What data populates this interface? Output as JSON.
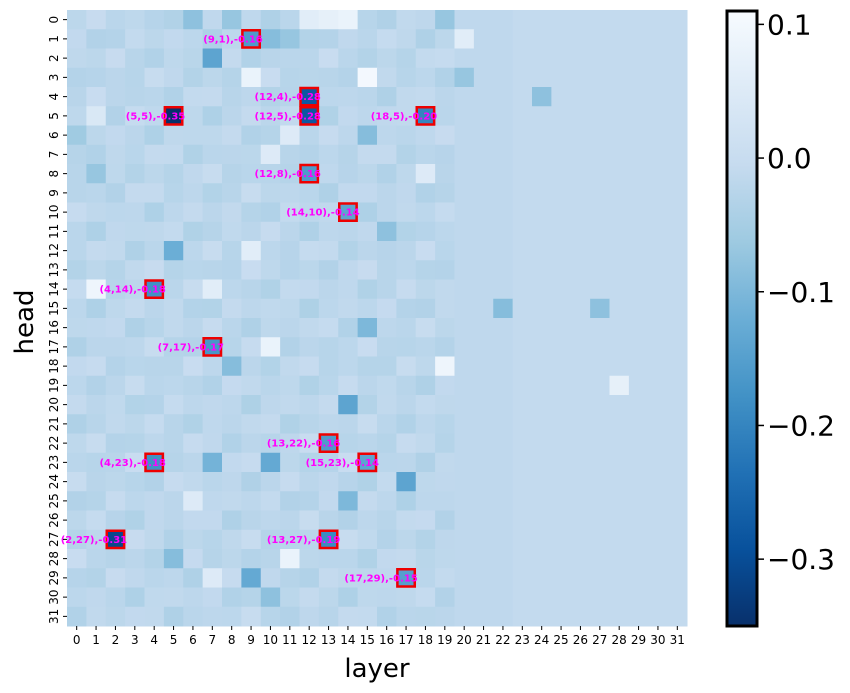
{
  "chart_data": {
    "type": "heatmap",
    "title": "",
    "xlabel": "layer",
    "ylabel": "head",
    "x_ticks": [
      "0",
      "1",
      "2",
      "3",
      "4",
      "5",
      "6",
      "7",
      "8",
      "9",
      "10",
      "11",
      "12",
      "13",
      "14",
      "15",
      "16",
      "17",
      "18",
      "19",
      "20",
      "21",
      "22",
      "23",
      "24",
      "25",
      "26",
      "27",
      "28",
      "29",
      "30",
      "31"
    ],
    "y_ticks": [
      "0",
      "1",
      "2",
      "3",
      "4",
      "5",
      "6",
      "7",
      "8",
      "9",
      "10",
      "11",
      "12",
      "13",
      "14",
      "15",
      "16",
      "17",
      "18",
      "19",
      "20",
      "21",
      "22",
      "23",
      "24",
      "25",
      "26",
      "27",
      "28",
      "29",
      "30",
      "31"
    ],
    "colorbar": {
      "colormap": "Blues_r",
      "range": [
        -0.35,
        0.11
      ],
      "ticks": [
        0.1,
        0.0,
        -0.1,
        -0.2,
        -0.3
      ],
      "tick_labels": [
        "0.1",
        "0.0",
        "−0.1",
        "−0.2",
        "−0.3"
      ]
    },
    "default_value": -0.02,
    "layer_values": {
      "cols_ge_20": -0.015,
      "cols_ge_23": -0.01
    },
    "notable_cells": [
      {
        "layer": 9,
        "head": 1,
        "value": -0.16,
        "label": "(9,1),-0.16"
      },
      {
        "layer": 12,
        "head": 4,
        "value": -0.28,
        "label": "(12,4),-0.28"
      },
      {
        "layer": 5,
        "head": 5,
        "value": -0.35,
        "label": "(5,5),-0.35"
      },
      {
        "layer": 12,
        "head": 5,
        "value": -0.28,
        "label": "(12,5),-0.28"
      },
      {
        "layer": 18,
        "head": 5,
        "value": -0.2,
        "label": "(18,5),-0.20"
      },
      {
        "layer": 12,
        "head": 8,
        "value": -0.16,
        "label": "(12,8),-0.16"
      },
      {
        "layer": 14,
        "head": 10,
        "value": -0.14,
        "label": "(14,10),-0.14"
      },
      {
        "layer": 4,
        "head": 14,
        "value": -0.18,
        "label": "(4,14),-0.18"
      },
      {
        "layer": 7,
        "head": 17,
        "value": -0.17,
        "label": "(7,17),-0.17"
      },
      {
        "layer": 13,
        "head": 22,
        "value": -0.16,
        "label": "(13,22),-0.16"
      },
      {
        "layer": 4,
        "head": 23,
        "value": -0.18,
        "label": "(4,23),-0.18"
      },
      {
        "layer": 15,
        "head": 23,
        "value": -0.14,
        "label": "(15,23),-0.14"
      },
      {
        "layer": 2,
        "head": 27,
        "value": -0.31,
        "label": "(2,27),-0.31"
      },
      {
        "layer": 13,
        "head": 27,
        "value": -0.19,
        "label": "(13,27),-0.19"
      },
      {
        "layer": 17,
        "head": 29,
        "value": -0.15,
        "label": "(17,29),-0.15"
      }
    ],
    "other_cells": [
      {
        "layer": 6,
        "head": 0,
        "value": -0.08
      },
      {
        "layer": 8,
        "head": 0,
        "value": -0.07
      },
      {
        "layer": 12,
        "head": 0,
        "value": 0.06
      },
      {
        "layer": 13,
        "head": 0,
        "value": 0.07
      },
      {
        "layer": 14,
        "head": 0,
        "value": 0.08
      },
      {
        "layer": 19,
        "head": 0,
        "value": -0.07
      },
      {
        "layer": 10,
        "head": 1,
        "value": -0.09
      },
      {
        "layer": 11,
        "head": 1,
        "value": -0.07
      },
      {
        "layer": 20,
        "head": 1,
        "value": 0.06
      },
      {
        "layer": 7,
        "head": 2,
        "value": -0.14
      },
      {
        "layer": 9,
        "head": 3,
        "value": 0.08
      },
      {
        "layer": 15,
        "head": 3,
        "value": 0.1
      },
      {
        "layer": 20,
        "head": 3,
        "value": -0.07
      },
      {
        "layer": 24,
        "head": 4,
        "value": -0.08
      },
      {
        "layer": 1,
        "head": 5,
        "value": 0.04
      },
      {
        "layer": 0,
        "head": 6,
        "value": -0.06
      },
      {
        "layer": 11,
        "head": 6,
        "value": 0.05
      },
      {
        "layer": 15,
        "head": 6,
        "value": -0.09
      },
      {
        "layer": 10,
        "head": 7,
        "value": 0.05
      },
      {
        "layer": 1,
        "head": 8,
        "value": -0.07
      },
      {
        "layer": 18,
        "head": 8,
        "value": 0.05
      },
      {
        "layer": 16,
        "head": 11,
        "value": -0.08
      },
      {
        "layer": 5,
        "head": 12,
        "value": -0.12
      },
      {
        "layer": 9,
        "head": 12,
        "value": 0.06
      },
      {
        "layer": 1,
        "head": 14,
        "value": 0.09
      },
      {
        "layer": 7,
        "head": 14,
        "value": 0.06
      },
      {
        "layer": 22,
        "head": 15,
        "value": -0.09
      },
      {
        "layer": 27,
        "head": 15,
        "value": -0.08
      },
      {
        "layer": 15,
        "head": 16,
        "value": -0.1
      },
      {
        "layer": 10,
        "head": 17,
        "value": 0.08
      },
      {
        "layer": 8,
        "head": 18,
        "value": -0.09
      },
      {
        "layer": 19,
        "head": 18,
        "value": 0.09
      },
      {
        "layer": 28,
        "head": 19,
        "value": 0.07
      },
      {
        "layer": 14,
        "head": 20,
        "value": -0.14
      },
      {
        "layer": 10,
        "head": 23,
        "value": -0.13
      },
      {
        "layer": 7,
        "head": 23,
        "value": -0.11
      },
      {
        "layer": 17,
        "head": 24,
        "value": -0.14
      },
      {
        "layer": 14,
        "head": 25,
        "value": -0.1
      },
      {
        "layer": 6,
        "head": 25,
        "value": 0.05
      },
      {
        "layer": 11,
        "head": 28,
        "value": 0.08
      },
      {
        "layer": 5,
        "head": 28,
        "value": -0.09
      },
      {
        "layer": 9,
        "head": 29,
        "value": -0.13
      },
      {
        "layer": 7,
        "head": 29,
        "value": 0.05
      },
      {
        "layer": 10,
        "head": 30,
        "value": -0.08
      }
    ]
  }
}
